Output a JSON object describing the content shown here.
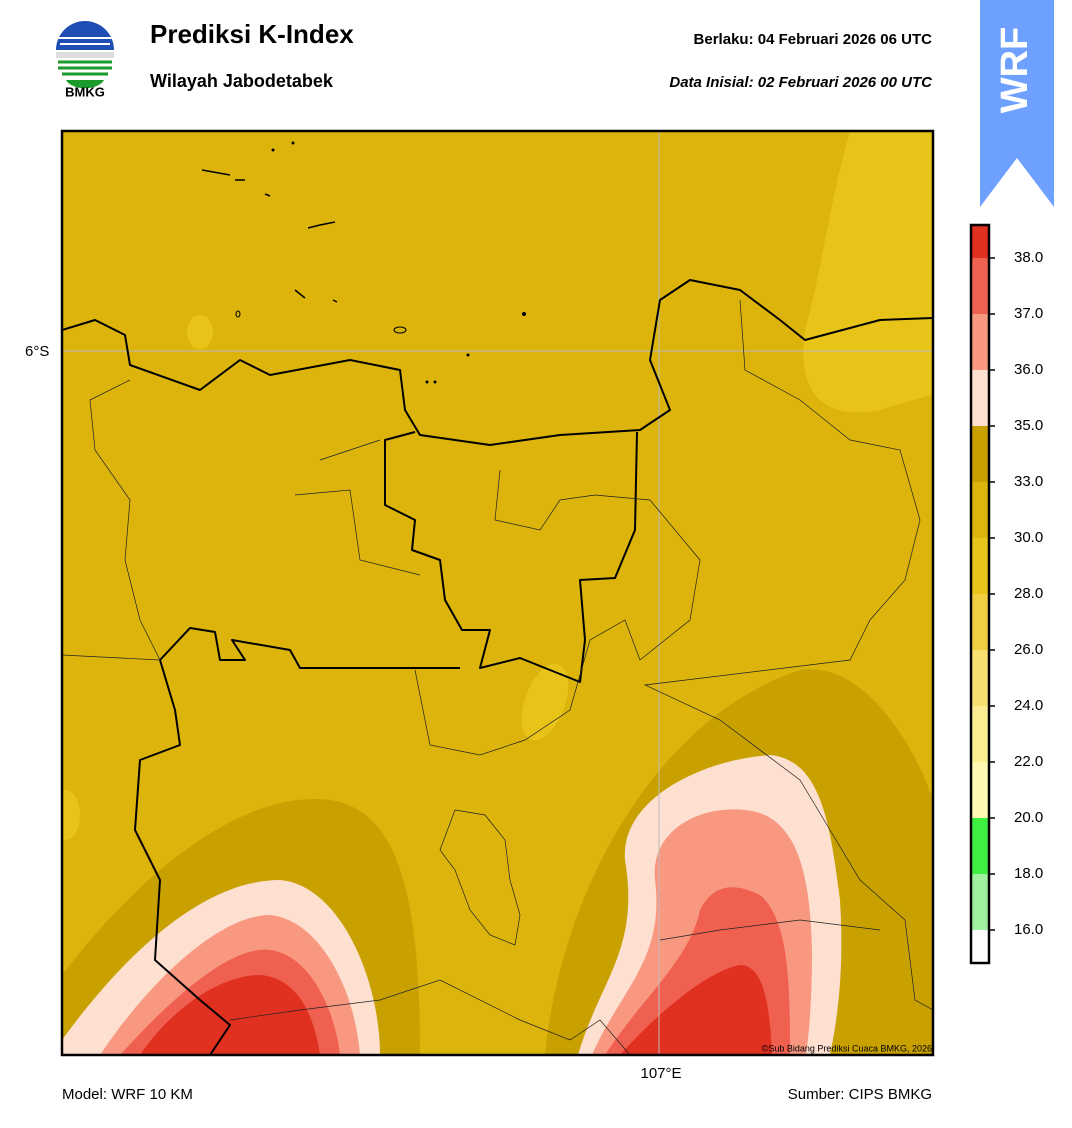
{
  "header": {
    "logo_text": "BMKG",
    "title": "Prediksi K-Index",
    "subtitle": "Wilayah Jabodetabek",
    "valid": "Berlaku:  04 Februari 2026 06 UTC",
    "init": "Data Inisial:  02 Februari 2026 00 UTC",
    "model_badge": "WRF"
  },
  "map": {
    "lat_label": "6°S",
    "lon_label": "107°E",
    "credit": "©Sub Bidang Prediksi Cuaca BMKG, 2026"
  },
  "colorbar": {
    "colors": [
      "#ffffff",
      "#a0f0a0",
      "#40f040",
      "#fff8b0",
      "#fcee90",
      "#f8e070",
      "#f0d040",
      "#e8c418",
      "#dcb40c",
      "#c8a000",
      "#fde0d0",
      "#f89880",
      "#f06050",
      "#e03020"
    ],
    "ticks": [
      {
        "value": 16,
        "label": "16.0"
      },
      {
        "value": 18,
        "label": "18.0"
      },
      {
        "value": 20,
        "label": "20.0"
      },
      {
        "value": 22,
        "label": "22.0"
      },
      {
        "value": 24,
        "label": "24.0"
      },
      {
        "value": 26,
        "label": "26.0"
      },
      {
        "value": 28,
        "label": "28.0"
      },
      {
        "value": 30,
        "label": "30.0"
      },
      {
        "value": 33,
        "label": "33.0"
      },
      {
        "value": 35,
        "label": "35.0"
      },
      {
        "value": 36,
        "label": "36.0"
      },
      {
        "value": 37,
        "label": "37.0"
      },
      {
        "value": 38,
        "label": "38.0"
      }
    ]
  },
  "footer": {
    "model": "Model: WRF 10 KM",
    "source": "Sumber: CIPS BMKG"
  }
}
